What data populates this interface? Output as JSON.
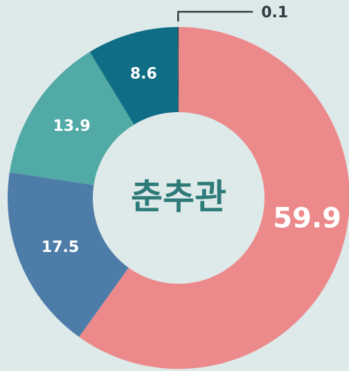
{
  "chart_data": {
    "type": "donut",
    "center_label": "춘추관",
    "values": [
      59.9,
      17.5,
      13.9,
      8.6,
      0.1
    ],
    "colors": [
      "#ec8a8b",
      "#4e7ca8",
      "#52aaa6",
      "#0f6d85",
      "#3a4a50"
    ],
    "label_color": "#ffffff",
    "center_color": "#2e7a78",
    "leader_color": "#2f3d44"
  }
}
